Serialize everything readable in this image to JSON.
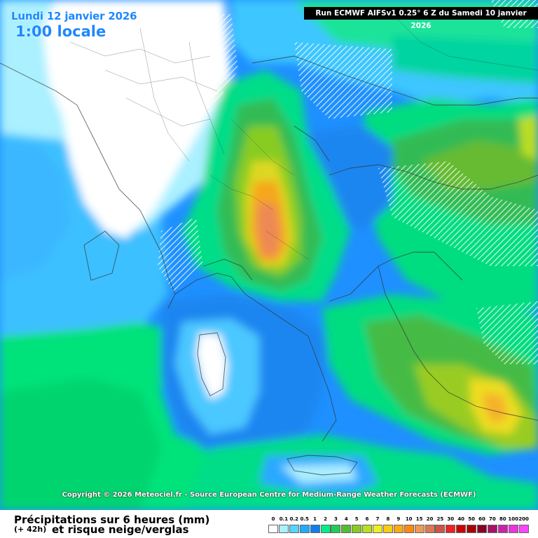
{
  "header": {
    "date": "Lundi 12 janvier 2026",
    "time": "1:00 locale",
    "run": "Run ECMWF AIFSv1 0.25° 6 Z du Samedi 10 janvier 2026"
  },
  "copyright": "Copyright © 2026 Meteociel.fr - Source European Centre for Medium-Range Weather Forecasts (ECMWF)",
  "footer": {
    "title": "Précipitations sur 6 heures (mm)",
    "offset": "(+ 42h)",
    "subtitle": "et risque neige/verglas"
  },
  "legend": [
    {
      "label": "0",
      "color": "#ffffff"
    },
    {
      "label": "0.1",
      "color": "#aaf0ff"
    },
    {
      "label": "0.2",
      "color": "#55d5ff"
    },
    {
      "label": "0.5",
      "color": "#22aaff"
    },
    {
      "label": "1",
      "color": "#0f7ff0"
    },
    {
      "label": "2",
      "color": "#00ee88"
    },
    {
      "label": "3",
      "color": "#22cc55"
    },
    {
      "label": "4",
      "color": "#55bb33"
    },
    {
      "label": "5",
      "color": "#88cc22"
    },
    {
      "label": "6",
      "color": "#bbdd22"
    },
    {
      "label": "7",
      "color": "#eeee22"
    },
    {
      "label": "8",
      "color": "#ffcc11"
    },
    {
      "label": "9",
      "color": "#ffaa11"
    },
    {
      "label": "10",
      "color": "#ff8811"
    },
    {
      "label": "15",
      "color": "#ee9955"
    },
    {
      "label": "20",
      "color": "#dd7755"
    },
    {
      "label": "25",
      "color": "#cc5544"
    },
    {
      "label": "30",
      "color": "#ee2222"
    },
    {
      "label": "40",
      "color": "#cc0000"
    },
    {
      "label": "50",
      "color": "#aa0000"
    },
    {
      "label": "60",
      "color": "#880022"
    },
    {
      "label": "70",
      "color": "#aa1166"
    },
    {
      "label": "80",
      "color": "#cc22aa"
    },
    {
      "label": "100",
      "color": "#ee33dd"
    },
    {
      "label": "200",
      "color": "#ff44ff"
    }
  ]
}
